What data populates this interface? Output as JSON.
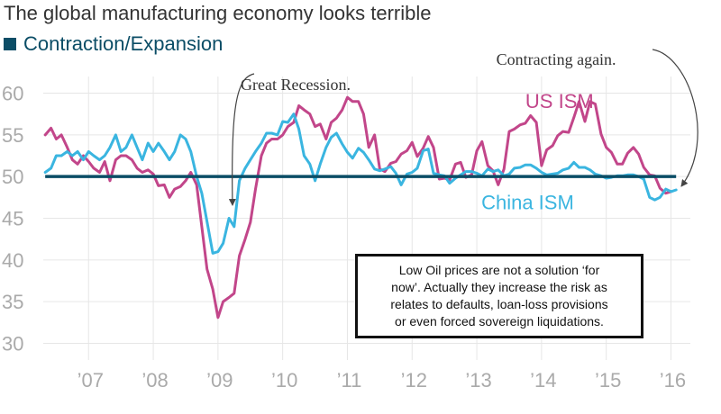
{
  "chart_data": {
    "type": "line",
    "title": "The global manufacturing economy looks terrible",
    "legend": [
      {
        "label": "Contraction/Expansion",
        "color": "#0b4d66"
      }
    ],
    "ylim": [
      28,
      62
    ],
    "yticks": [
      30,
      35,
      40,
      45,
      50,
      55,
      60
    ],
    "xlim": [
      2006.3,
      2016.3
    ],
    "xticks": [
      {
        "value": 2007,
        "label": "’07"
      },
      {
        "value": 2008,
        "label": "’08"
      },
      {
        "value": 2009,
        "label": "’09"
      },
      {
        "value": 2010,
        "label": "’10"
      },
      {
        "value": 2011,
        "label": "’11"
      },
      {
        "value": 2012,
        "label": "’12"
      },
      {
        "value": 2013,
        "label": "’13"
      },
      {
        "value": 2014,
        "label": "’14"
      },
      {
        "value": 2015,
        "label": "’15"
      },
      {
        "value": 2016,
        "label": "’16"
      }
    ],
    "reference_line": {
      "y": 50,
      "label": "Contraction/Expansion",
      "color": "#0b4d66"
    },
    "series": [
      {
        "name": "US ISM",
        "color": "#c2468a",
        "points": [
          [
            2006.33,
            55.0
          ],
          [
            2006.42,
            55.8
          ],
          [
            2006.5,
            54.5
          ],
          [
            2006.58,
            55.0
          ],
          [
            2006.67,
            53.5
          ],
          [
            2006.75,
            52.0
          ],
          [
            2006.83,
            51.5
          ],
          [
            2006.92,
            52.5
          ],
          [
            2007.0,
            51.8
          ],
          [
            2007.08,
            51.0
          ],
          [
            2007.17,
            50.5
          ],
          [
            2007.25,
            51.8
          ],
          [
            2007.33,
            49.5
          ],
          [
            2007.42,
            52.0
          ],
          [
            2007.5,
            52.5
          ],
          [
            2007.58,
            52.5
          ],
          [
            2007.67,
            52.0
          ],
          [
            2007.75,
            51.0
          ],
          [
            2007.83,
            50.5
          ],
          [
            2007.92,
            50.8
          ],
          [
            2008.0,
            50.3
          ],
          [
            2008.08,
            48.9
          ],
          [
            2008.17,
            49.0
          ],
          [
            2008.25,
            47.5
          ],
          [
            2008.33,
            48.5
          ],
          [
            2008.42,
            48.8
          ],
          [
            2008.5,
            49.5
          ],
          [
            2008.58,
            50.5
          ],
          [
            2008.67,
            49.0
          ],
          [
            2008.75,
            44.0
          ],
          [
            2008.83,
            38.9
          ],
          [
            2008.92,
            36.5
          ],
          [
            2009.0,
            33.1
          ],
          [
            2009.08,
            35.0
          ],
          [
            2009.17,
            35.5
          ],
          [
            2009.25,
            36.0
          ],
          [
            2009.33,
            40.5
          ],
          [
            2009.42,
            42.5
          ],
          [
            2009.5,
            44.5
          ],
          [
            2009.58,
            48.5
          ],
          [
            2009.67,
            52.5
          ],
          [
            2009.75,
            54.0
          ],
          [
            2009.83,
            54.5
          ],
          [
            2009.92,
            54.5
          ],
          [
            2010.0,
            55.0
          ],
          [
            2010.08,
            56.0
          ],
          [
            2010.17,
            56.5
          ],
          [
            2010.25,
            58.5
          ],
          [
            2010.33,
            58.0
          ],
          [
            2010.42,
            57.5
          ],
          [
            2010.5,
            56.0
          ],
          [
            2010.58,
            56.3
          ],
          [
            2010.67,
            54.5
          ],
          [
            2010.75,
            56.5
          ],
          [
            2010.83,
            57.0
          ],
          [
            2010.92,
            58.0
          ],
          [
            2011.0,
            59.5
          ],
          [
            2011.08,
            59.0
          ],
          [
            2011.17,
            59.0
          ],
          [
            2011.25,
            57.5
          ],
          [
            2011.33,
            53.5
          ],
          [
            2011.42,
            55.0
          ],
          [
            2011.5,
            50.9
          ],
          [
            2011.58,
            50.6
          ],
          [
            2011.67,
            51.6
          ],
          [
            2011.75,
            51.8
          ],
          [
            2011.83,
            52.7
          ],
          [
            2011.92,
            53.1
          ],
          [
            2012.0,
            54.1
          ],
          [
            2012.08,
            52.4
          ],
          [
            2012.17,
            53.4
          ],
          [
            2012.25,
            54.8
          ],
          [
            2012.33,
            53.5
          ],
          [
            2012.42,
            49.7
          ],
          [
            2012.5,
            49.8
          ],
          [
            2012.58,
            49.6
          ],
          [
            2012.67,
            51.5
          ],
          [
            2012.75,
            51.7
          ],
          [
            2012.83,
            49.9
          ],
          [
            2012.92,
            50.2
          ],
          [
            2013.0,
            53.1
          ],
          [
            2013.08,
            54.2
          ],
          [
            2013.17,
            51.3
          ],
          [
            2013.25,
            50.7
          ],
          [
            2013.33,
            49.0
          ],
          [
            2013.42,
            50.9
          ],
          [
            2013.5,
            55.4
          ],
          [
            2013.58,
            55.7
          ],
          [
            2013.67,
            56.2
          ],
          [
            2013.75,
            56.4
          ],
          [
            2013.83,
            57.3
          ],
          [
            2013.92,
            56.5
          ],
          [
            2014.0,
            51.3
          ],
          [
            2014.08,
            53.2
          ],
          [
            2014.17,
            53.7
          ],
          [
            2014.25,
            54.9
          ],
          [
            2014.33,
            55.4
          ],
          [
            2014.42,
            55.3
          ],
          [
            2014.5,
            57.1
          ],
          [
            2014.58,
            59.0
          ],
          [
            2014.67,
            56.6
          ],
          [
            2014.75,
            59.0
          ],
          [
            2014.83,
            58.7
          ],
          [
            2014.92,
            55.1
          ],
          [
            2015.0,
            53.5
          ],
          [
            2015.08,
            52.9
          ],
          [
            2015.17,
            51.5
          ],
          [
            2015.25,
            51.5
          ],
          [
            2015.33,
            52.8
          ],
          [
            2015.42,
            53.5
          ],
          [
            2015.5,
            52.7
          ],
          [
            2015.58,
            51.1
          ],
          [
            2015.67,
            50.2
          ],
          [
            2015.75,
            50.1
          ],
          [
            2015.83,
            48.6
          ],
          [
            2015.92,
            48.0
          ],
          [
            2016.0,
            48.2
          ]
        ],
        "label": {
          "text": "US ISM",
          "x": 2013.75,
          "y": 58.2
        }
      },
      {
        "name": "China ISM",
        "color": "#3ab5e0",
        "points": [
          [
            2006.33,
            50.5
          ],
          [
            2006.42,
            51.0
          ],
          [
            2006.5,
            52.5
          ],
          [
            2006.58,
            52.5
          ],
          [
            2006.67,
            53.0
          ],
          [
            2006.75,
            52.5
          ],
          [
            2006.83,
            53.0
          ],
          [
            2006.92,
            52.0
          ],
          [
            2007.0,
            53.0
          ],
          [
            2007.08,
            52.5
          ],
          [
            2007.17,
            52.0
          ],
          [
            2007.25,
            52.5
          ],
          [
            2007.33,
            53.5
          ],
          [
            2007.42,
            55.0
          ],
          [
            2007.5,
            53.0
          ],
          [
            2007.58,
            53.5
          ],
          [
            2007.67,
            55.0
          ],
          [
            2007.75,
            53.5
          ],
          [
            2007.83,
            52.0
          ],
          [
            2007.92,
            54.0
          ],
          [
            2008.0,
            53.0
          ],
          [
            2008.08,
            54.0
          ],
          [
            2008.17,
            53.0
          ],
          [
            2008.25,
            52.0
          ],
          [
            2008.33,
            53.0
          ],
          [
            2008.42,
            55.0
          ],
          [
            2008.5,
            54.5
          ],
          [
            2008.58,
            53.0
          ],
          [
            2008.67,
            50.0
          ],
          [
            2008.75,
            48.0
          ],
          [
            2008.83,
            44.6
          ],
          [
            2008.92,
            40.8
          ],
          [
            2009.0,
            41.0
          ],
          [
            2009.08,
            42.0
          ],
          [
            2009.17,
            45.0
          ],
          [
            2009.25,
            44.0
          ],
          [
            2009.33,
            49.5
          ],
          [
            2009.42,
            51.0
          ],
          [
            2009.5,
            52.0
          ],
          [
            2009.58,
            53.0
          ],
          [
            2009.67,
            54.0
          ],
          [
            2009.75,
            55.2
          ],
          [
            2009.83,
            55.2
          ],
          [
            2009.92,
            55.0
          ],
          [
            2010.0,
            56.6
          ],
          [
            2010.08,
            56.5
          ],
          [
            2010.17,
            57.5
          ],
          [
            2010.25,
            55.7
          ],
          [
            2010.33,
            52.5
          ],
          [
            2010.42,
            51.5
          ],
          [
            2010.5,
            49.5
          ],
          [
            2010.58,
            51.5
          ],
          [
            2010.67,
            53.5
          ],
          [
            2010.75,
            54.7
          ],
          [
            2010.83,
            55.2
          ],
          [
            2010.92,
            53.9
          ],
          [
            2011.0,
            52.9
          ],
          [
            2011.08,
            52.2
          ],
          [
            2011.17,
            53.4
          ],
          [
            2011.25,
            52.9
          ],
          [
            2011.33,
            52.0
          ],
          [
            2011.42,
            50.9
          ],
          [
            2011.5,
            50.7
          ],
          [
            2011.58,
            50.9
          ],
          [
            2011.67,
            51.2
          ],
          [
            2011.75,
            50.4
          ],
          [
            2011.83,
            49.0
          ],
          [
            2011.92,
            50.3
          ],
          [
            2012.0,
            50.5
          ],
          [
            2012.08,
            51.0
          ],
          [
            2012.17,
            53.1
          ],
          [
            2012.25,
            53.3
          ],
          [
            2012.33,
            50.4
          ],
          [
            2012.42,
            50.2
          ],
          [
            2012.5,
            50.1
          ],
          [
            2012.58,
            49.2
          ],
          [
            2012.67,
            49.8
          ],
          [
            2012.75,
            50.2
          ],
          [
            2012.83,
            50.6
          ],
          [
            2012.92,
            50.6
          ],
          [
            2013.0,
            50.4
          ],
          [
            2013.08,
            50.1
          ],
          [
            2013.17,
            50.9
          ],
          [
            2013.25,
            50.6
          ],
          [
            2013.33,
            50.8
          ],
          [
            2013.42,
            50.1
          ],
          [
            2013.5,
            50.3
          ],
          [
            2013.58,
            51.0
          ],
          [
            2013.67,
            51.1
          ],
          [
            2013.75,
            51.4
          ],
          [
            2013.83,
            51.4
          ],
          [
            2013.92,
            51.0
          ],
          [
            2014.0,
            50.5
          ],
          [
            2014.08,
            50.2
          ],
          [
            2014.17,
            50.3
          ],
          [
            2014.25,
            50.4
          ],
          [
            2014.33,
            50.8
          ],
          [
            2014.42,
            51.0
          ],
          [
            2014.5,
            51.7
          ],
          [
            2014.58,
            51.1
          ],
          [
            2014.67,
            51.1
          ],
          [
            2014.75,
            50.8
          ],
          [
            2014.83,
            50.3
          ],
          [
            2014.92,
            50.1
          ],
          [
            2015.0,
            49.8
          ],
          [
            2015.08,
            49.9
          ],
          [
            2015.17,
            50.1
          ],
          [
            2015.25,
            50.1
          ],
          [
            2015.33,
            50.2
          ],
          [
            2015.42,
            50.2
          ],
          [
            2015.5,
            50.0
          ],
          [
            2015.58,
            49.7
          ],
          [
            2015.67,
            47.5
          ],
          [
            2015.75,
            47.2
          ],
          [
            2015.83,
            47.5
          ],
          [
            2015.92,
            48.5
          ],
          [
            2016.0,
            48.2
          ],
          [
            2016.08,
            48.4
          ]
        ],
        "label": {
          "text": "China ISM",
          "x": 2013.07,
          "y": 46.1
        }
      }
    ],
    "annotations": [
      {
        "id": "great-recession",
        "text": "Great Recession.",
        "x": 2009.35,
        "y": 60.4
      },
      {
        "id": "contracting-again",
        "text": "Contracting again.",
        "x": 2013.3,
        "y": 63.4
      }
    ]
  },
  "note_box": {
    "lines": [
      "Low Oil prices are not a solution ‘for",
      "now’. Actually they increase the risk as",
      "relates to defaults, loan-loss provisions",
      "or even forced sovereign liquidations."
    ]
  }
}
